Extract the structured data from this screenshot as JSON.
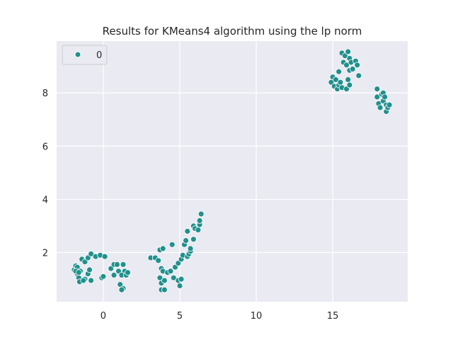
{
  "chart_data": {
    "type": "scatter",
    "title": "Results for KMeans4 algorithm using the lp norm",
    "xlabel": "",
    "ylabel": "",
    "xlim": [
      -3.05,
      19.9
    ],
    "ylim": [
      0.15,
      9.95
    ],
    "xticks": [
      0,
      5,
      10,
      15
    ],
    "yticks": [
      2,
      4,
      6,
      8
    ],
    "grid": true,
    "legend": {
      "position": "top-left",
      "entries": [
        "0"
      ]
    },
    "colors": {
      "point": "#21908C",
      "background": "#EAEAF2",
      "grid": "#FFFFFF"
    },
    "series": [
      {
        "name": "0",
        "points": [
          [
            -1.9,
            1.35
          ],
          [
            -1.8,
            1.5
          ],
          [
            -1.7,
            1.2
          ],
          [
            -1.6,
            1.05
          ],
          [
            -1.55,
            0.9
          ],
          [
            -1.7,
            1.45
          ],
          [
            -1.4,
            1.75
          ],
          [
            -1.2,
            1.65
          ],
          [
            -1.0,
            1.8
          ],
          [
            -0.8,
            1.95
          ],
          [
            -0.5,
            1.85
          ],
          [
            -0.2,
            1.9
          ],
          [
            0.1,
            1.85
          ],
          [
            -1.5,
            1.3
          ],
          [
            -1.2,
            1.0
          ],
          [
            -1.0,
            1.2
          ],
          [
            -0.9,
            1.35
          ],
          [
            -0.8,
            0.95
          ],
          [
            -1.3,
            0.95
          ],
          [
            -1.8,
            1.3
          ],
          [
            -1.6,
            1.25
          ],
          [
            -0.1,
            1.05
          ],
          [
            0.0,
            1.1
          ],
          [
            0.5,
            1.4
          ],
          [
            0.7,
            1.55
          ],
          [
            0.9,
            1.55
          ],
          [
            0.7,
            1.15
          ],
          [
            1.0,
            1.3
          ],
          [
            1.1,
            0.8
          ],
          [
            1.3,
            0.65
          ],
          [
            1.2,
            0.6
          ],
          [
            1.3,
            1.55
          ],
          [
            1.4,
            1.3
          ],
          [
            1.2,
            1.15
          ],
          [
            1.5,
            1.15
          ],
          [
            1.6,
            1.25
          ],
          [
            3.1,
            1.8
          ],
          [
            3.4,
            1.8
          ],
          [
            3.6,
            1.7
          ],
          [
            3.7,
            2.1
          ],
          [
            3.9,
            2.15
          ],
          [
            3.8,
            1.4
          ],
          [
            3.9,
            1.3
          ],
          [
            3.7,
            1.05
          ],
          [
            3.8,
            0.85
          ],
          [
            3.8,
            0.6
          ],
          [
            4.0,
            0.6
          ],
          [
            4.0,
            0.95
          ],
          [
            4.2,
            1.25
          ],
          [
            4.4,
            1.3
          ],
          [
            4.5,
            2.3
          ],
          [
            4.6,
            1.05
          ],
          [
            4.7,
            1.45
          ],
          [
            4.9,
            1.6
          ],
          [
            4.9,
            0.95
          ],
          [
            5.0,
            0.75
          ],
          [
            5.1,
            1.0
          ],
          [
            5.1,
            1.75
          ],
          [
            5.2,
            1.9
          ],
          [
            5.3,
            2.3
          ],
          [
            5.4,
            2.45
          ],
          [
            5.5,
            1.85
          ],
          [
            5.5,
            2.8
          ],
          [
            5.6,
            1.95
          ],
          [
            5.7,
            2.05
          ],
          [
            5.7,
            2.15
          ],
          [
            5.9,
            2.5
          ],
          [
            5.9,
            3.0
          ],
          [
            6.0,
            2.9
          ],
          [
            6.2,
            2.85
          ],
          [
            6.3,
            3.05
          ],
          [
            6.3,
            3.2
          ],
          [
            6.4,
            3.45
          ],
          [
            14.9,
            8.4
          ],
          [
            15.0,
            8.6
          ],
          [
            15.1,
            8.25
          ],
          [
            15.2,
            8.5
          ],
          [
            15.3,
            8.15
          ],
          [
            15.4,
            8.3
          ],
          [
            15.4,
            8.8
          ],
          [
            15.5,
            8.4
          ],
          [
            15.6,
            8.2
          ],
          [
            15.6,
            9.5
          ],
          [
            15.7,
            9.15
          ],
          [
            15.8,
            9.4
          ],
          [
            15.9,
            8.15
          ],
          [
            15.9,
            9.05
          ],
          [
            16.0,
            8.5
          ],
          [
            16.0,
            9.55
          ],
          [
            16.1,
            8.85
          ],
          [
            16.1,
            9.3
          ],
          [
            16.2,
            9.15
          ],
          [
            16.3,
            8.9
          ],
          [
            16.5,
            9.2
          ],
          [
            16.6,
            9.05
          ],
          [
            16.7,
            8.65
          ],
          [
            16.1,
            8.3
          ],
          [
            17.9,
            8.15
          ],
          [
            17.9,
            7.85
          ],
          [
            18.0,
            7.6
          ],
          [
            18.1,
            7.45
          ],
          [
            18.2,
            7.95
          ],
          [
            18.3,
            8.0
          ],
          [
            18.3,
            7.7
          ],
          [
            18.4,
            7.85
          ],
          [
            18.5,
            7.55
          ],
          [
            18.5,
            7.3
          ],
          [
            18.6,
            7.45
          ],
          [
            18.7,
            7.55
          ]
        ]
      }
    ]
  }
}
